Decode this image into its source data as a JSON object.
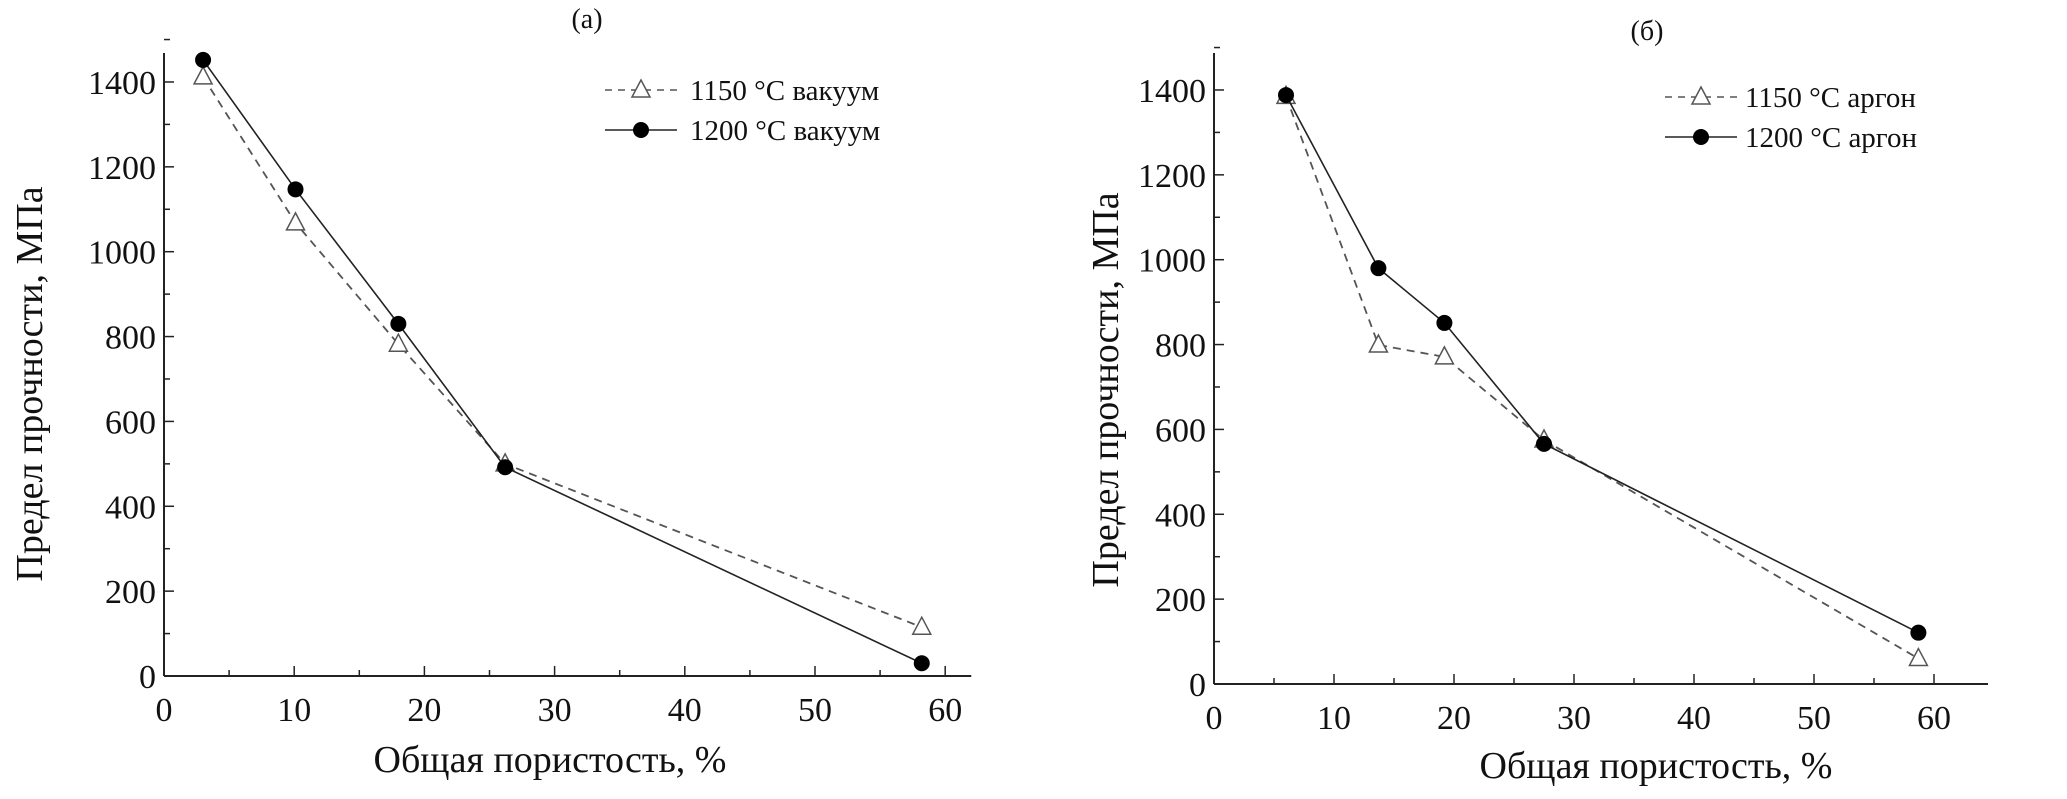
{
  "chart_data": [
    {
      "type": "line",
      "title": "(а)",
      "xlabel": "Общая пористость, %",
      "ylabel": "Предел прочности, МПа",
      "xlim": [
        0,
        62
      ],
      "ylim": [
        0,
        1500
      ],
      "xticks": [
        0,
        10,
        20,
        30,
        40,
        50,
        60
      ],
      "yticks": [
        0,
        200,
        400,
        600,
        800,
        1000,
        1200,
        1400
      ],
      "grid": false,
      "legend_position": "top-right",
      "series": [
        {
          "name": "1150 °C вакуум",
          "marker": "open-triangle",
          "line": "dashed",
          "x": [
            3,
            10.1,
            18,
            26.2,
            58.2
          ],
          "y": [
            1412,
            1068,
            782,
            500,
            115
          ]
        },
        {
          "name": "1200 °C вакуум",
          "marker": "filled-circle",
          "line": "solid",
          "x": [
            3,
            10.1,
            18,
            26.2,
            58.2
          ],
          "y": [
            1452,
            1147,
            830,
            492,
            30
          ]
        }
      ]
    },
    {
      "type": "line",
      "title": "(б)",
      "xlabel": "Общая пористость, %",
      "ylabel": "Предел прочности, МПа",
      "xlim": [
        0,
        64.5
      ],
      "ylim": [
        0,
        1500
      ],
      "xticks": [
        0,
        10,
        20,
        30,
        40,
        50,
        60
      ],
      "yticks": [
        0,
        200,
        400,
        600,
        800,
        1000,
        1200,
        1400
      ],
      "grid": false,
      "legend_position": "top-right",
      "series": [
        {
          "name": "1150 °C аргон",
          "marker": "open-triangle",
          "line": "dashed",
          "x": [
            6,
            13.7,
            19.2,
            27.5,
            58.7
          ],
          "y": [
            1385,
            799,
            771,
            575,
            60
          ]
        },
        {
          "name": "1200 °C аргон",
          "marker": "filled-circle",
          "line": "solid",
          "x": [
            6,
            13.7,
            19.2,
            27.5,
            58.7
          ],
          "y": [
            1388,
            980,
            851,
            566,
            121
          ]
        }
      ]
    }
  ]
}
